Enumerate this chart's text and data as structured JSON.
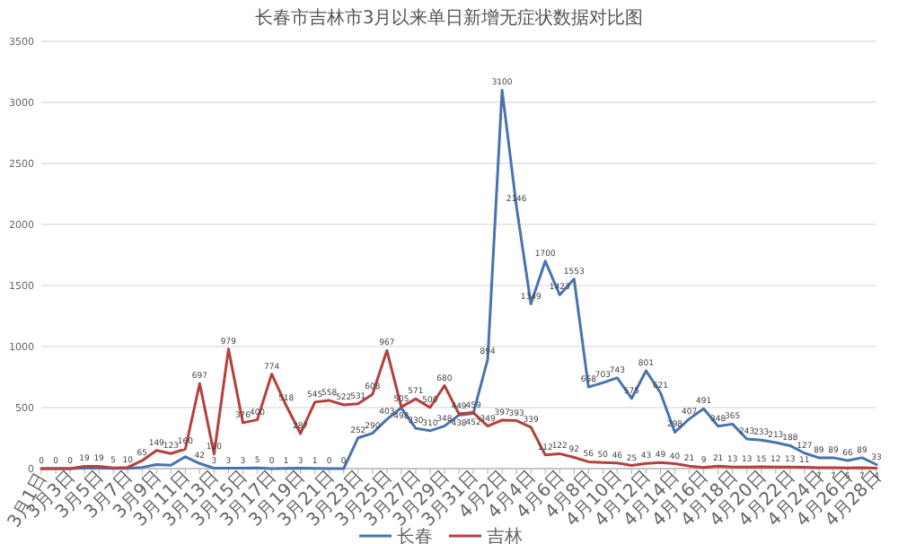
{
  "chart_data": {
    "type": "line",
    "title": "长春市吉林市3月以来单日新增无症状数据对比图",
    "categories": [
      "3月1日",
      null,
      "3月3日",
      null,
      "3月5日",
      null,
      "3月7日",
      null,
      "3月9日",
      null,
      "3月11日",
      null,
      "3月13日",
      null,
      "3月15日",
      null,
      "3月17日",
      null,
      "3月19日",
      null,
      "3月21日",
      null,
      "3月23日",
      null,
      "3月25日",
      null,
      "3月27日",
      null,
      "3月29日",
      null,
      "3月31日",
      null,
      "4月2日",
      null,
      "4月4日",
      null,
      "4月6日",
      null,
      "4月8日",
      null,
      "4月10日",
      null,
      "4月12日",
      null,
      "4月14日",
      null,
      "4月16日",
      null,
      "4月18日",
      null,
      "4月20日",
      null,
      "4月22日",
      null,
      "4月24日",
      null,
      "4月26日",
      null,
      "4月28日"
    ],
    "series": [
      {
        "name": "长春",
        "color": "#4a72b0",
        "values": [
          0,
          0,
          0,
          4,
          4,
          2,
          2,
          10,
          33,
          27,
          97,
          42,
          3,
          3,
          3,
          5,
          0,
          1,
          3,
          1,
          0,
          0,
          252,
          290,
          403,
          498,
          330,
          310,
          348,
          438,
          452,
          894,
          3100,
          2146,
          1349,
          1700,
          1423,
          1553,
          668,
          703,
          743,
          575,
          801,
          621,
          298,
          407,
          491,
          348,
          365,
          243,
          233,
          213,
          188,
          127,
          89,
          89,
          66,
          89,
          33
        ],
        "value_labels": [
          null,
          null,
          null,
          null,
          null,
          null,
          null,
          null,
          null,
          null,
          null,
          "42",
          "3",
          "3",
          "3",
          "5",
          "0",
          "1",
          "3",
          "1",
          "0",
          "0",
          "252",
          "290",
          "403",
          "498",
          "330",
          "310",
          "348",
          "438",
          "452",
          "894",
          "3100",
          "2146",
          "1349",
          "1700",
          "1423",
          "1553",
          "668",
          "703",
          "743",
          "575",
          "801",
          "621",
          "298",
          "407",
          "491",
          "348",
          "365",
          "243",
          "233",
          "213",
          "188",
          "127",
          "89",
          "89",
          "66",
          "89",
          "33"
        ]
      },
      {
        "name": "吉林",
        "color": "#b5403d",
        "values": [
          0,
          0,
          0,
          19,
          19,
          5,
          10,
          65,
          149,
          123,
          160,
          697,
          120,
          979,
          376,
          400,
          774,
          518,
          287,
          545,
          558,
          522,
          531,
          608,
          967,
          505,
          571,
          500,
          680,
          449,
          459,
          349,
          397,
          393,
          339,
          112,
          122,
          92,
          56,
          50,
          46,
          25,
          43,
          49,
          40,
          21,
          9,
          21,
          13,
          13,
          15,
          12,
          13,
          11,
          7,
          7,
          5,
          7,
          4
        ],
        "value_labels": [
          "0",
          "0",
          "0",
          "19",
          "19",
          "5",
          "10",
          "65",
          "149",
          "123",
          "160",
          "697",
          "120",
          "979",
          "376",
          "400",
          "774",
          "518",
          "287",
          "545",
          "558",
          "522",
          "531",
          "608",
          "967",
          "505",
          "571",
          "500",
          "680",
          "449",
          "459",
          "349",
          "397",
          "393",
          "339",
          "112",
          "122",
          "92",
          "56",
          "50",
          "46",
          "25",
          "43",
          "49",
          "40",
          "21",
          "9",
          "21",
          "13",
          "13",
          "15",
          "12",
          "13",
          "11",
          "7",
          "7",
          "5",
          "7",
          "4"
        ]
      }
    ],
    "ylim": [
      0,
      3500
    ],
    "yticks": [
      0,
      500,
      1000,
      1500,
      2000,
      2500,
      3000,
      3500
    ],
    "grid": "y",
    "legend": "bottom",
    "marker": "none",
    "line_style": "solid"
  }
}
